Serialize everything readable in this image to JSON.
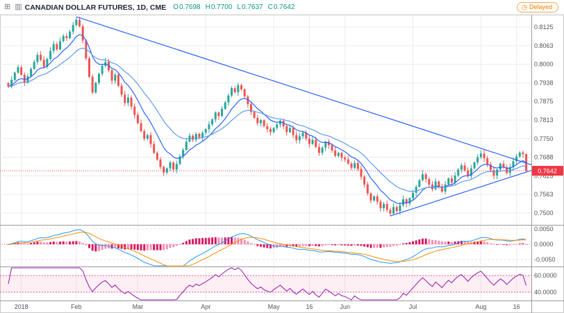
{
  "header": {
    "symbol_title": "CANADIAN DOLLAR FUTURES, 1D, CME",
    "ohlc": {
      "o_label": "O",
      "o_value": "0.7698",
      "h_label": "H",
      "h_value": "0.7700",
      "l_label": "L",
      "l_value": "0.7637",
      "c_label": "C",
      "c_value": "0.7642"
    },
    "delayed_label": "Delayed"
  },
  "chart_data": {
    "type": "candlestick",
    "title": "Canadian Dollar Futures, 1D, CME",
    "last_price": {
      "label": "0.7642",
      "value": 0.7642
    },
    "price_axis": {
      "range": [
        0.746,
        0.8165
      ],
      "ticks": [
        {
          "label": "0.8125",
          "value": 0.8125
        },
        {
          "label": "0.8063",
          "value": 0.80625
        },
        {
          "label": "0.8000",
          "value": 0.8
        },
        {
          "label": "0.7938",
          "value": 0.79375
        },
        {
          "label": "0.7875",
          "value": 0.7875
        },
        {
          "label": "0.7813",
          "value": 0.78125
        },
        {
          "label": "0.7750",
          "value": 0.775
        },
        {
          "label": "0.7688",
          "value": 0.76875
        },
        {
          "label": "0.7625",
          "value": 0.7625
        },
        {
          "label": "0.7563",
          "value": 0.75625
        },
        {
          "label": "0.7500",
          "value": 0.75
        }
      ]
    },
    "time_axis": {
      "ticks": [
        {
          "label": "2018",
          "index": 4
        },
        {
          "label": "Feb",
          "index": 21
        },
        {
          "label": "Mar",
          "index": 40
        },
        {
          "label": "Apr",
          "index": 61
        },
        {
          "label": "May",
          "index": 82
        },
        {
          "label": "16",
          "index": 93
        },
        {
          "label": "Jun",
          "index": 104
        },
        {
          "label": "Jul",
          "index": 125
        },
        {
          "label": "Aug",
          "index": 146
        },
        {
          "label": "16",
          "index": 157
        }
      ]
    },
    "closes": [
      0.7925,
      0.7948,
      0.7972,
      0.799,
      0.7965,
      0.7938,
      0.796,
      0.7985,
      0.8008,
      0.8032,
      0.8015,
      0.7992,
      0.8018,
      0.8045,
      0.8068,
      0.805,
      0.8078,
      0.8095,
      0.8088,
      0.811,
      0.8132,
      0.815,
      0.8128,
      0.808,
      0.802,
      0.7958,
      0.7905,
      0.7938,
      0.7968,
      0.7995,
      0.8008,
      0.798,
      0.7945,
      0.7965,
      0.7928,
      0.7898,
      0.787,
      0.7888,
      0.7858,
      0.783,
      0.7802,
      0.7775,
      0.775,
      0.7762,
      0.7732,
      0.7702,
      0.768,
      0.7655,
      0.7636,
      0.765,
      0.767,
      0.7646,
      0.7665,
      0.769,
      0.7712,
      0.774,
      0.776,
      0.7746,
      0.7766,
      0.7755,
      0.777,
      0.7782,
      0.7798,
      0.7815,
      0.7838,
      0.7826,
      0.785,
      0.7872,
      0.7895,
      0.792,
      0.7906,
      0.793,
      0.7916,
      0.7892,
      0.7866,
      0.784,
      0.782,
      0.7802,
      0.7812,
      0.7792,
      0.7782,
      0.7772,
      0.7786,
      0.7798,
      0.781,
      0.7792,
      0.7772,
      0.7786,
      0.7762,
      0.7745,
      0.7758,
      0.777,
      0.775,
      0.7732,
      0.7746,
      0.7722,
      0.7702,
      0.772,
      0.774,
      0.7728,
      0.771,
      0.7692,
      0.7702,
      0.7686,
      0.768,
      0.7666,
      0.7652,
      0.7668,
      0.7648,
      0.7622,
      0.7596,
      0.7566,
      0.7542,
      0.7556,
      0.7538,
      0.7516,
      0.753,
      0.751,
      0.7498,
      0.752,
      0.7506,
      0.7526,
      0.7546,
      0.7532,
      0.755,
      0.7568,
      0.7588,
      0.761,
      0.763,
      0.7614,
      0.7596,
      0.758,
      0.7606,
      0.759,
      0.7572,
      0.7596,
      0.7616,
      0.7602,
      0.7626,
      0.7646,
      0.766,
      0.7643,
      0.7624,
      0.765,
      0.767,
      0.7688,
      0.77,
      0.7684,
      0.7664,
      0.7644,
      0.7626,
      0.7646,
      0.7666,
      0.7654,
      0.7634,
      0.7654,
      0.7674,
      0.769,
      0.7703,
      0.7698,
      0.7642
    ],
    "last_ohlc": [
      0.7698,
      0.77,
      0.7637,
      0.7642
    ],
    "moving_averages": [
      {
        "name": "ma-fast",
        "period": 9,
        "color": "#2962ff"
      },
      {
        "name": "ma-slow",
        "period": 21,
        "color": "#5d9cea"
      }
    ],
    "trendlines": [
      {
        "name": "descending-resistance",
        "from": [
          21,
          0.816
        ],
        "to": [
          165,
          0.765
        ]
      },
      {
        "name": "ascending-support",
        "from": [
          118,
          0.749
        ],
        "to": [
          165,
          0.7655
        ]
      }
    ],
    "indicators": [
      {
        "type": "macd",
        "params": [
          12,
          26,
          9
        ],
        "range": [
          -0.0073,
          0.0064
        ],
        "axis_ticks": [
          {
            "label": "0.0050",
            "value": 0.005
          },
          {
            "label": "0.0000",
            "value": 0
          },
          {
            "label": "-0.0050",
            "value": -0.005
          }
        ]
      },
      {
        "type": "rsi",
        "period": 14,
        "range": [
          30,
          71
        ],
        "band": [
          40,
          60
        ],
        "axis_ticks": [
          {
            "label": "60.0000",
            "value": 60
          },
          {
            "label": "40.0000",
            "value": 40
          }
        ]
      }
    ],
    "colors": {
      "up": "#26a69a",
      "down": "#ef5350",
      "ma_fast": "#2962ff",
      "ma_slow": "#5d9cea",
      "trendline": "#2962ff",
      "grid": "#ececec",
      "axis_text": "#50535e",
      "separator": "#9a9a9a",
      "last_price_bg": "#f23645",
      "last_price_line": "#f23645",
      "macd_line": "#2196f3",
      "macd_signal": "#fb8c00",
      "macd_zero": "#f06292",
      "hist_strong": "#d81b60",
      "hist_weak": "#f48fb1",
      "rsi_line": "#9c27b0",
      "band_fill": "rgba(233,30,99,0.07)",
      "band_line": "#e91e63",
      "ohlc_text": "#089981",
      "delayed": "#ef7d00"
    }
  }
}
